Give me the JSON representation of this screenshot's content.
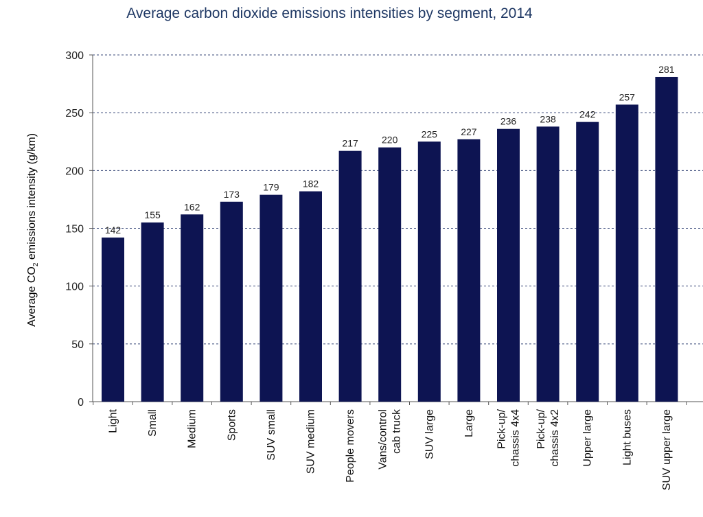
{
  "chart_data": {
    "type": "bar",
    "title": "Average carbon dioxide emissions intensities by segment, 2014",
    "ylabel_parts": {
      "prefix": "Average CO",
      "subscript": "2",
      "suffix": " emissions intensity (g/km)"
    },
    "xlabel": "",
    "ylim": [
      0,
      300
    ],
    "yticks": [
      0,
      50,
      100,
      150,
      200,
      250,
      300
    ],
    "grid": true,
    "bar_color": "#0d1452",
    "categories": [
      [
        "Light"
      ],
      [
        "Small"
      ],
      [
        "Medium"
      ],
      [
        "Sports"
      ],
      [
        "SUV small"
      ],
      [
        "SUV medium"
      ],
      [
        "People movers"
      ],
      [
        "Vans/control",
        "cab truck"
      ],
      [
        "SUV large"
      ],
      [
        "Large"
      ],
      [
        "Pick-up/",
        "chassis 4x4"
      ],
      [
        "Pick-up/",
        "chassis 4x2"
      ],
      [
        "Upper large"
      ],
      [
        "Light buses"
      ],
      [
        "SUV upper large"
      ]
    ],
    "values": [
      142,
      155,
      162,
      173,
      179,
      182,
      217,
      220,
      225,
      227,
      236,
      238,
      242,
      257,
      281
    ]
  }
}
